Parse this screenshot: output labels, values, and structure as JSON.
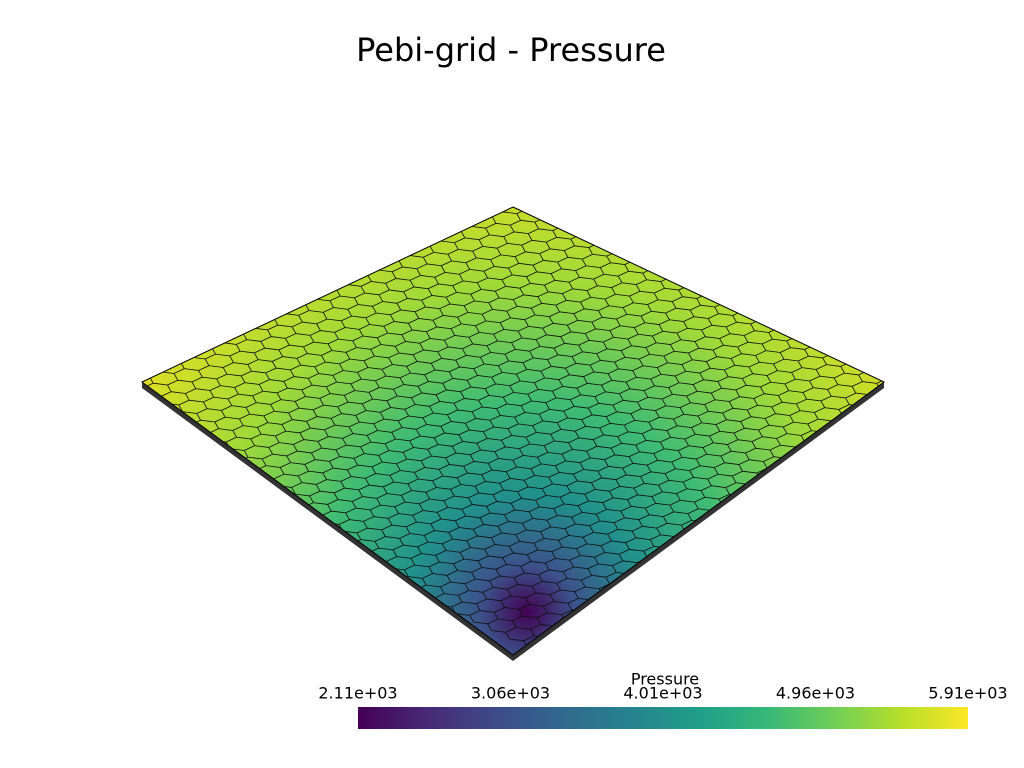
{
  "chart_data": {
    "type": "mesh",
    "title": "Pebi-grid - Pressure",
    "colorbar": {
      "title": "Pressure",
      "colormap": "viridis",
      "clim": [
        2110,
        5910
      ],
      "ticks": [
        {
          "value": 2110,
          "label": "2.11e+03"
        },
        {
          "value": 3060,
          "label": "3.06e+03"
        },
        {
          "value": 4010,
          "label": "4.01e+03"
        },
        {
          "value": 4960,
          "label": "4.96e+03"
        },
        {
          "value": 5910,
          "label": "5.91e+03"
        }
      ]
    }
  }
}
